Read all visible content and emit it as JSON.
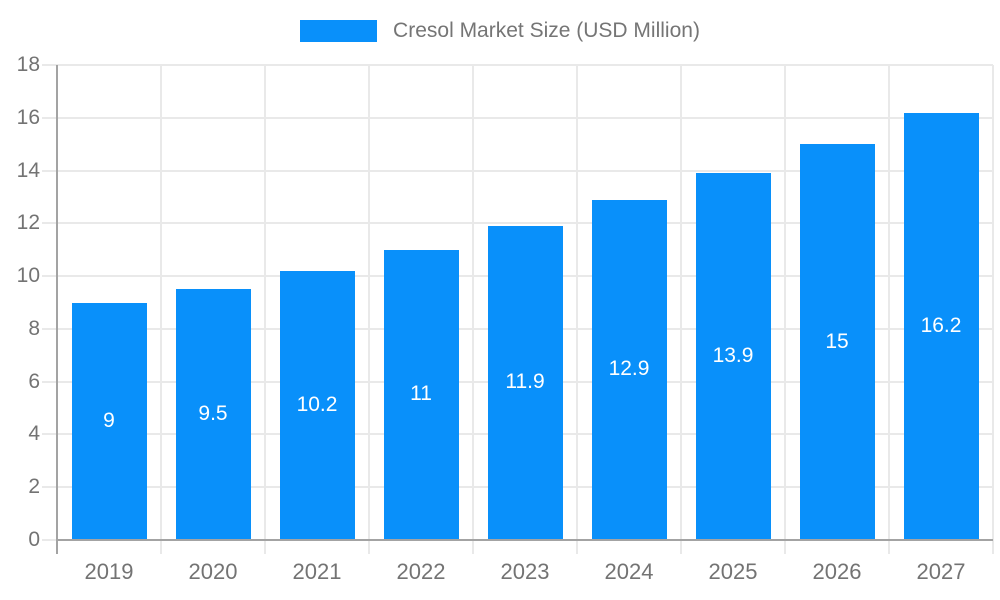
{
  "chart_data": {
    "type": "bar",
    "title": "Cresol Market Size (USD Million)",
    "legend_entries": [
      "Cresol Market Size (USD Million)"
    ],
    "legend_position": "top-center",
    "categories": [
      "2019",
      "2020",
      "2021",
      "2022",
      "2023",
      "2024",
      "2025",
      "2026",
      "2027"
    ],
    "values": [
      9,
      9.5,
      10.2,
      11,
      11.9,
      12.9,
      13.9,
      15,
      16.2
    ],
    "value_labels": [
      "9",
      "9.5",
      "10.2",
      "11",
      "11.9",
      "12.9",
      "13.9",
      "15",
      "16.2"
    ],
    "value_label_position": "inside-center",
    "xlabel": "",
    "ylabel": "",
    "ylim": [
      0,
      18
    ],
    "ytick_step": 2,
    "ytick_labels": [
      "0",
      "2",
      "4",
      "6",
      "8",
      "10",
      "12",
      "14",
      "16",
      "18"
    ],
    "grid": true,
    "colors": {
      "bar": "#0990fa",
      "bar_value_label": "#ffffff",
      "axis_line": "#a3a3a3",
      "gridline": "#e9e9e9",
      "tick_text": "#737373",
      "legend_text": "#757575",
      "background": "#ffffff"
    }
  }
}
